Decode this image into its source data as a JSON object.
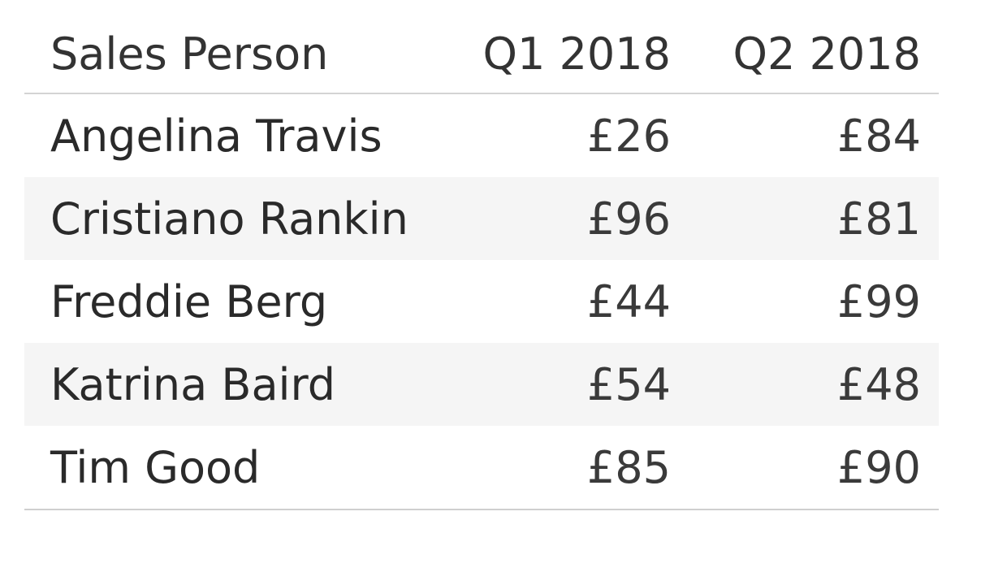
{
  "chart_data": {
    "type": "table",
    "columns": [
      "Sales Person",
      "Q1 2018",
      "Q2 2018"
    ],
    "rows": [
      [
        "Angelina Travis",
        "£26",
        "£84"
      ],
      [
        "Cristiano Rankin",
        "£96",
        "£81"
      ],
      [
        "Freddie Berg",
        "£44",
        "£99"
      ],
      [
        "Katrina Baird",
        "£54",
        "£48"
      ],
      [
        "Tim Good",
        "£85",
        "£90"
      ]
    ],
    "stripe_color": "#f5f5f5",
    "divider_color": "#d4d4d4"
  }
}
